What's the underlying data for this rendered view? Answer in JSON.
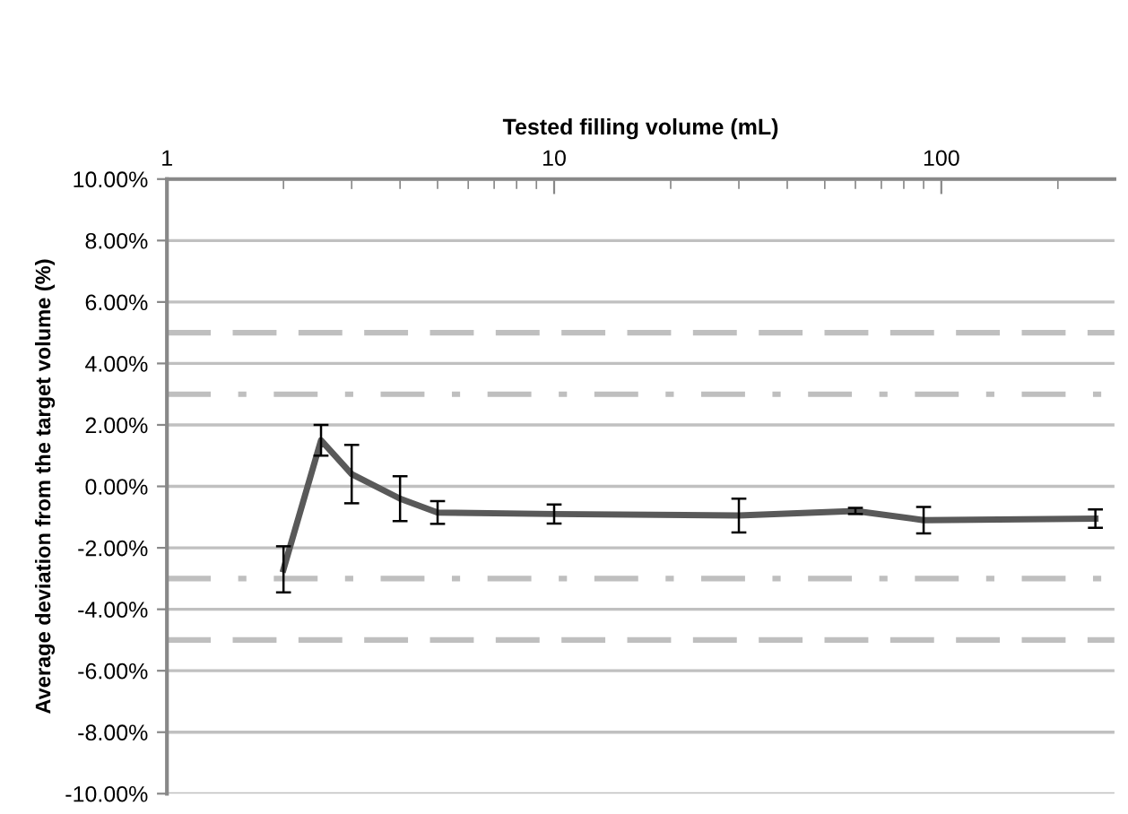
{
  "chart_data": {
    "type": "line",
    "xlabel": "Tested filling volume (mL)",
    "ylabel": "Average deviation from the target volume (%)",
    "x": [
      2,
      2.5,
      3,
      4,
      5,
      10,
      30,
      60,
      90,
      250
    ],
    "series": [
      {
        "color": "#595959",
        "values": [
          -2.7,
          1.5,
          0.4,
          -0.4,
          -0.85,
          -0.9,
          -0.95,
          -0.8,
          -1.1,
          -1.05
        ],
        "errors": [
          0.75,
          0.5,
          0.95,
          0.73,
          0.37,
          0.31,
          0.55,
          0.1,
          0.43,
          0.3
        ]
      }
    ],
    "log": "x",
    "xlim": [
      1,
      280
    ],
    "xticks": [
      1,
      10,
      100
    ],
    "ylim": [
      -10,
      10
    ],
    "yticks": [
      {
        "value": -10,
        "label": "-10.00%"
      },
      {
        "value": -8,
        "label": "-8.00%"
      },
      {
        "value": -6,
        "label": "-6.00%"
      },
      {
        "value": -4,
        "label": "-4.00%"
      },
      {
        "value": -2,
        "label": "-2.00%"
      },
      {
        "value": 0,
        "label": "0.00%"
      },
      {
        "value": 2,
        "label": "2.00%"
      },
      {
        "value": 4,
        "label": "4.00%"
      },
      {
        "value": 6,
        "label": "6.00%"
      },
      {
        "value": 8,
        "label": "8.00%"
      },
      {
        "value": 10,
        "label": "10.00%"
      }
    ],
    "grid": "y",
    "marker": "none",
    "line_style": "solid",
    "legend": false,
    "ref_lines": [
      {
        "axis": "y",
        "value": 5,
        "color": "#bfbfbf",
        "line_style": "dashed"
      },
      {
        "axis": "y",
        "value": 3,
        "color": "#bfbfbf",
        "line_style": "dashdot"
      },
      {
        "axis": "y",
        "value": -3,
        "color": "#bfbfbf",
        "line_style": "dashdot"
      },
      {
        "axis": "y",
        "value": -5,
        "color": "#bfbfbf",
        "line_style": "dashed"
      }
    ]
  }
}
